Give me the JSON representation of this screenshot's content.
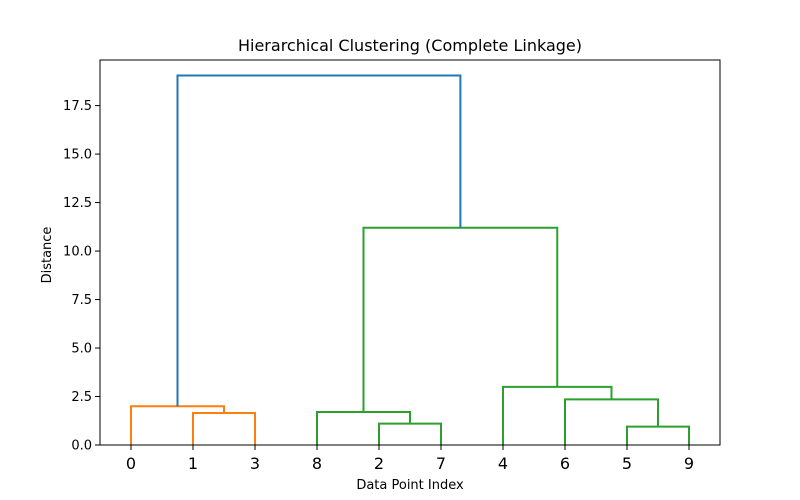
{
  "chart_data": {
    "type": "dendrogram",
    "title": "Hierarchical Clustering (Complete Linkage)",
    "xlabel": "Data Point Index",
    "ylabel": "Distance",
    "ylim": [
      0,
      19.85
    ],
    "yticks": [
      0.0,
      2.5,
      5.0,
      7.5,
      10.0,
      12.5,
      15.0,
      17.5
    ],
    "ytick_labels": [
      "0.0",
      "2.5",
      "5.0",
      "7.5",
      "10.0",
      "12.5",
      "15.0",
      "17.5"
    ],
    "leaf_order": [
      "0",
      "1",
      "3",
      "8",
      "2",
      "7",
      "4",
      "6",
      "5",
      "9"
    ],
    "colors": {
      "cluster_a": "#ff7f0e",
      "cluster_b": "#2ca02c",
      "above_threshold": "#1f77b4"
    },
    "links": [
      {
        "left": 1,
        "right": 2,
        "height": 1.65,
        "color": "#ff7f0e"
      },
      {
        "left": 0,
        "right": 1.5,
        "height": 2.0,
        "color": "#ff7f0e"
      },
      {
        "left": 4,
        "right": 5,
        "height": 1.1,
        "color": "#2ca02c"
      },
      {
        "left": 3,
        "right": 4.5,
        "height": 1.7,
        "color": "#2ca02c"
      },
      {
        "left": 8,
        "right": 9,
        "height": 0.95,
        "color": "#2ca02c"
      },
      {
        "left": 7,
        "right": 8.5,
        "height": 2.35,
        "color": "#2ca02c"
      },
      {
        "left": 6,
        "right": 7.75,
        "height": 3.0,
        "color": "#2ca02c"
      },
      {
        "left": 3.75,
        "right": 6.875,
        "height": 11.2,
        "color": "#2ca02c"
      },
      {
        "left": 0.75,
        "right": 5.3125,
        "height": 19.05,
        "color": "#1f77b4"
      }
    ]
  }
}
